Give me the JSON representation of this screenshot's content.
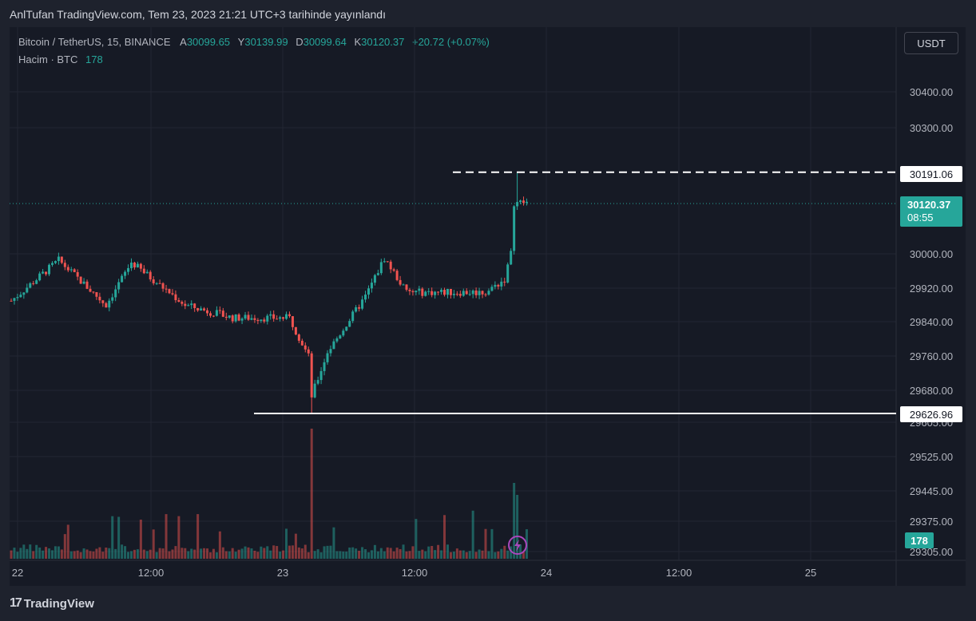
{
  "header": {
    "publish_text": "AnlTufan TradingView.com, Tem 23, 2023 21:21 UTC+3 tarihinde yayınlandı"
  },
  "legend": {
    "symbol": "Bitcoin / TetherUS, 15, BINANCE",
    "open_label": "A",
    "open": "30099.65",
    "high_label": "Y",
    "high": "30139.99",
    "low_label": "D",
    "low": "30099.64",
    "close_label": "K",
    "close": "30120.37",
    "change": "+20.72 (+0.07%)",
    "volume_label": "Hacim · BTC",
    "volume": "178"
  },
  "currency": "USDT",
  "footer": {
    "logo_glyph": "17",
    "brand": "TradingView"
  },
  "colors": {
    "up": "#26a69a",
    "down": "#ef5350",
    "background": "#161a25",
    "grid": "#232632"
  },
  "chart_data": {
    "type": "candlestick",
    "symbol": "Bitcoin / TetherUS",
    "interval": "15",
    "exchange": "BINANCE",
    "y_ticks": [
      "30400.00",
      "30300.00",
      "30000.00",
      "29920.00",
      "29840.00",
      "29760.00",
      "29680.00",
      "29605.00",
      "29525.00",
      "29445.00",
      "29375.00",
      "29305.00"
    ],
    "x_ticks": [
      "22",
      "12:00",
      "23",
      "12:00",
      "24",
      "12:00",
      "25"
    ],
    "last_price": "30120.37",
    "countdown": "08:55",
    "volume_last": "178",
    "horizontal_lines": [
      {
        "value": 30191.06,
        "label": "30191.06",
        "style": "dashed"
      },
      {
        "value": 29626.96,
        "label": "29626.96",
        "style": "solid"
      }
    ],
    "key_points": {
      "low": 29626.96,
      "high": 30191.06,
      "first_close": 29890,
      "peak_day22_1": 29985,
      "peak_day22_2": 29980,
      "mid_day22": 29880,
      "pre_drop": 29850,
      "drop_low": 29626.96,
      "rebound": 29990,
      "range_day23": 29910,
      "pump_close": 30120.37
    },
    "candle_count": 164,
    "volume_spike_index": 95,
    "grid": true
  }
}
